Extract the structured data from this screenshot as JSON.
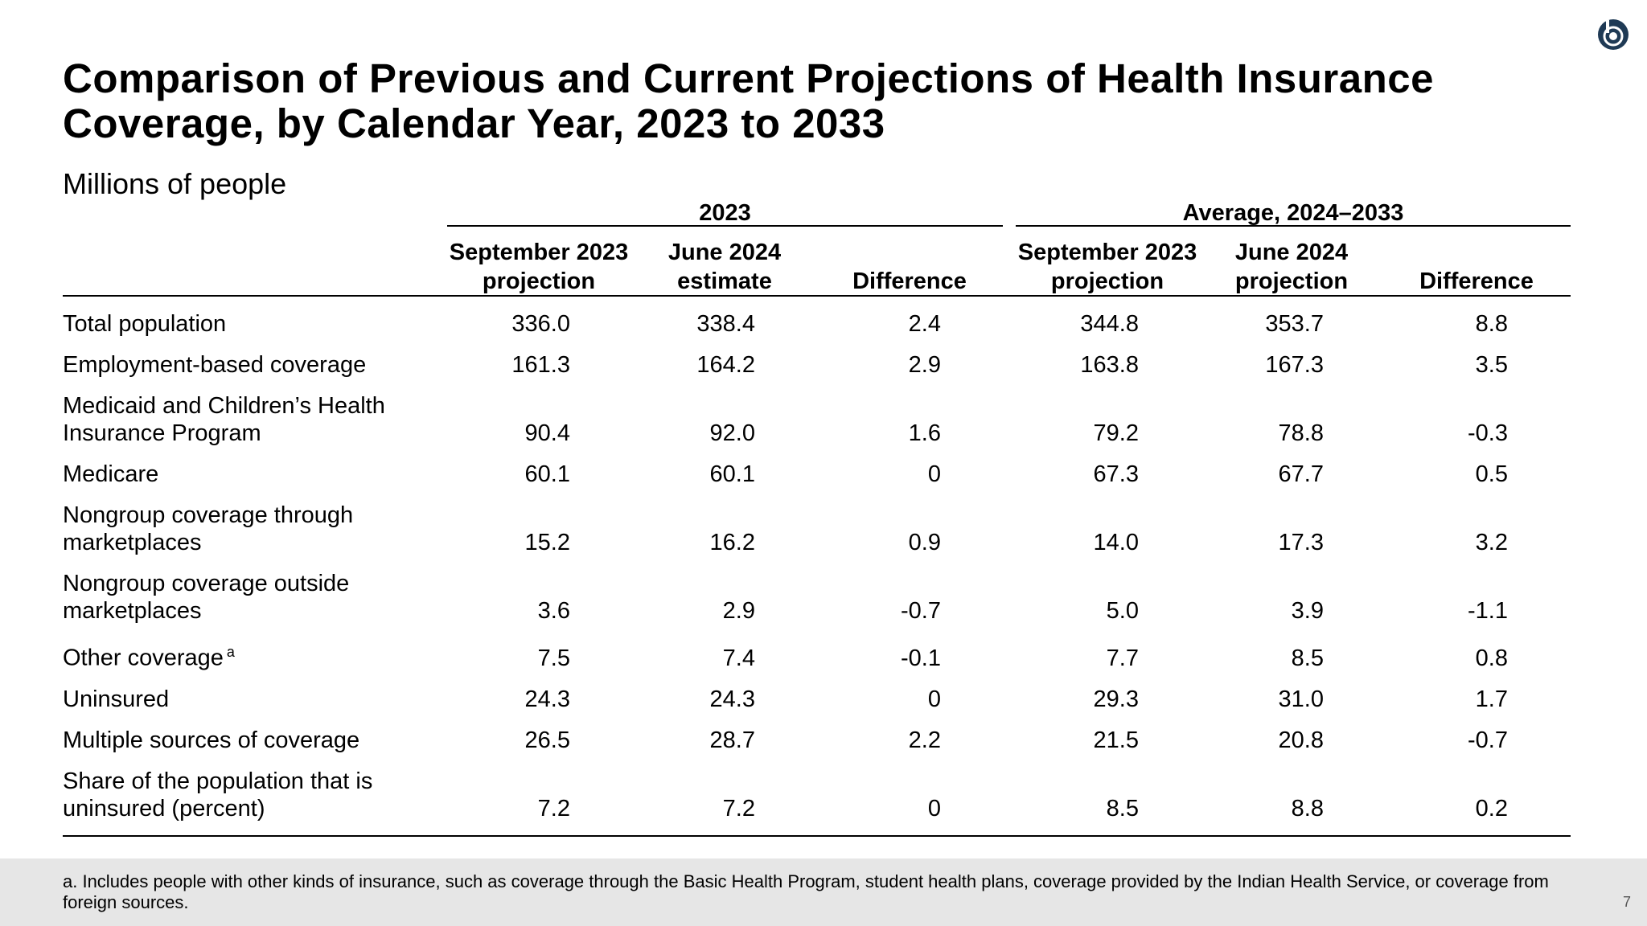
{
  "title": "Comparison of Previous and Current Projections of Health Insurance Coverage, by Calendar Year, 2023 to 2033",
  "subtitle": "Millions of people",
  "table": {
    "groups": [
      "2023",
      "Average, 2024–2033"
    ],
    "columns": [
      "September 2023 projection",
      "June 2024 estimate",
      "Difference",
      "September 2023 projection",
      "June 2024 projection",
      "Difference"
    ],
    "rows": [
      {
        "label": "Total population",
        "values": [
          "336.0",
          "338.4",
          "2.4",
          "344.8",
          "353.7",
          "8.8"
        ]
      },
      {
        "label": "Employment-based coverage",
        "values": [
          "161.3",
          "164.2",
          "2.9",
          "163.8",
          "167.3",
          "3.5"
        ]
      },
      {
        "label": "Medicaid and Children’s Health Insurance Program",
        "values": [
          "90.4",
          "92.0",
          "1.6",
          "79.2",
          "78.8",
          "-0.3"
        ]
      },
      {
        "label": "Medicare",
        "values": [
          "60.1",
          "60.1",
          "0",
          "67.3",
          "67.7",
          "0.5"
        ]
      },
      {
        "label": "Nongroup coverage through marketplaces",
        "values": [
          "15.2",
          "16.2",
          "0.9",
          "14.0",
          "17.3",
          "3.2"
        ]
      },
      {
        "label": "Nongroup coverage outside marketplaces",
        "values": [
          "3.6",
          "2.9",
          "-0.7",
          "5.0",
          "3.9",
          "-1.1"
        ]
      },
      {
        "label": "Other coverage",
        "note": "a",
        "values": [
          "7.5",
          "7.4",
          "-0.1",
          "7.7",
          "8.5",
          "0.8"
        ]
      },
      {
        "label": "Uninsured",
        "values": [
          "24.3",
          "24.3",
          "0",
          "29.3",
          "31.0",
          "1.7"
        ]
      },
      {
        "label": "Multiple sources of coverage",
        "values": [
          "26.5",
          "28.7",
          "2.2",
          "21.5",
          "20.8",
          "-0.7"
        ]
      },
      {
        "label": "Share of the population that is uninsured (percent)",
        "values": [
          "7.2",
          "7.2",
          "0",
          "8.5",
          "8.8",
          "0.2"
        ]
      }
    ]
  },
  "footnote": "a. Includes people with other kinds of insurance, such as coverage through the Basic Health Program, student health plans, coverage provided by the Indian Health Service, or coverage from foreign sources.",
  "page_number": "7"
}
